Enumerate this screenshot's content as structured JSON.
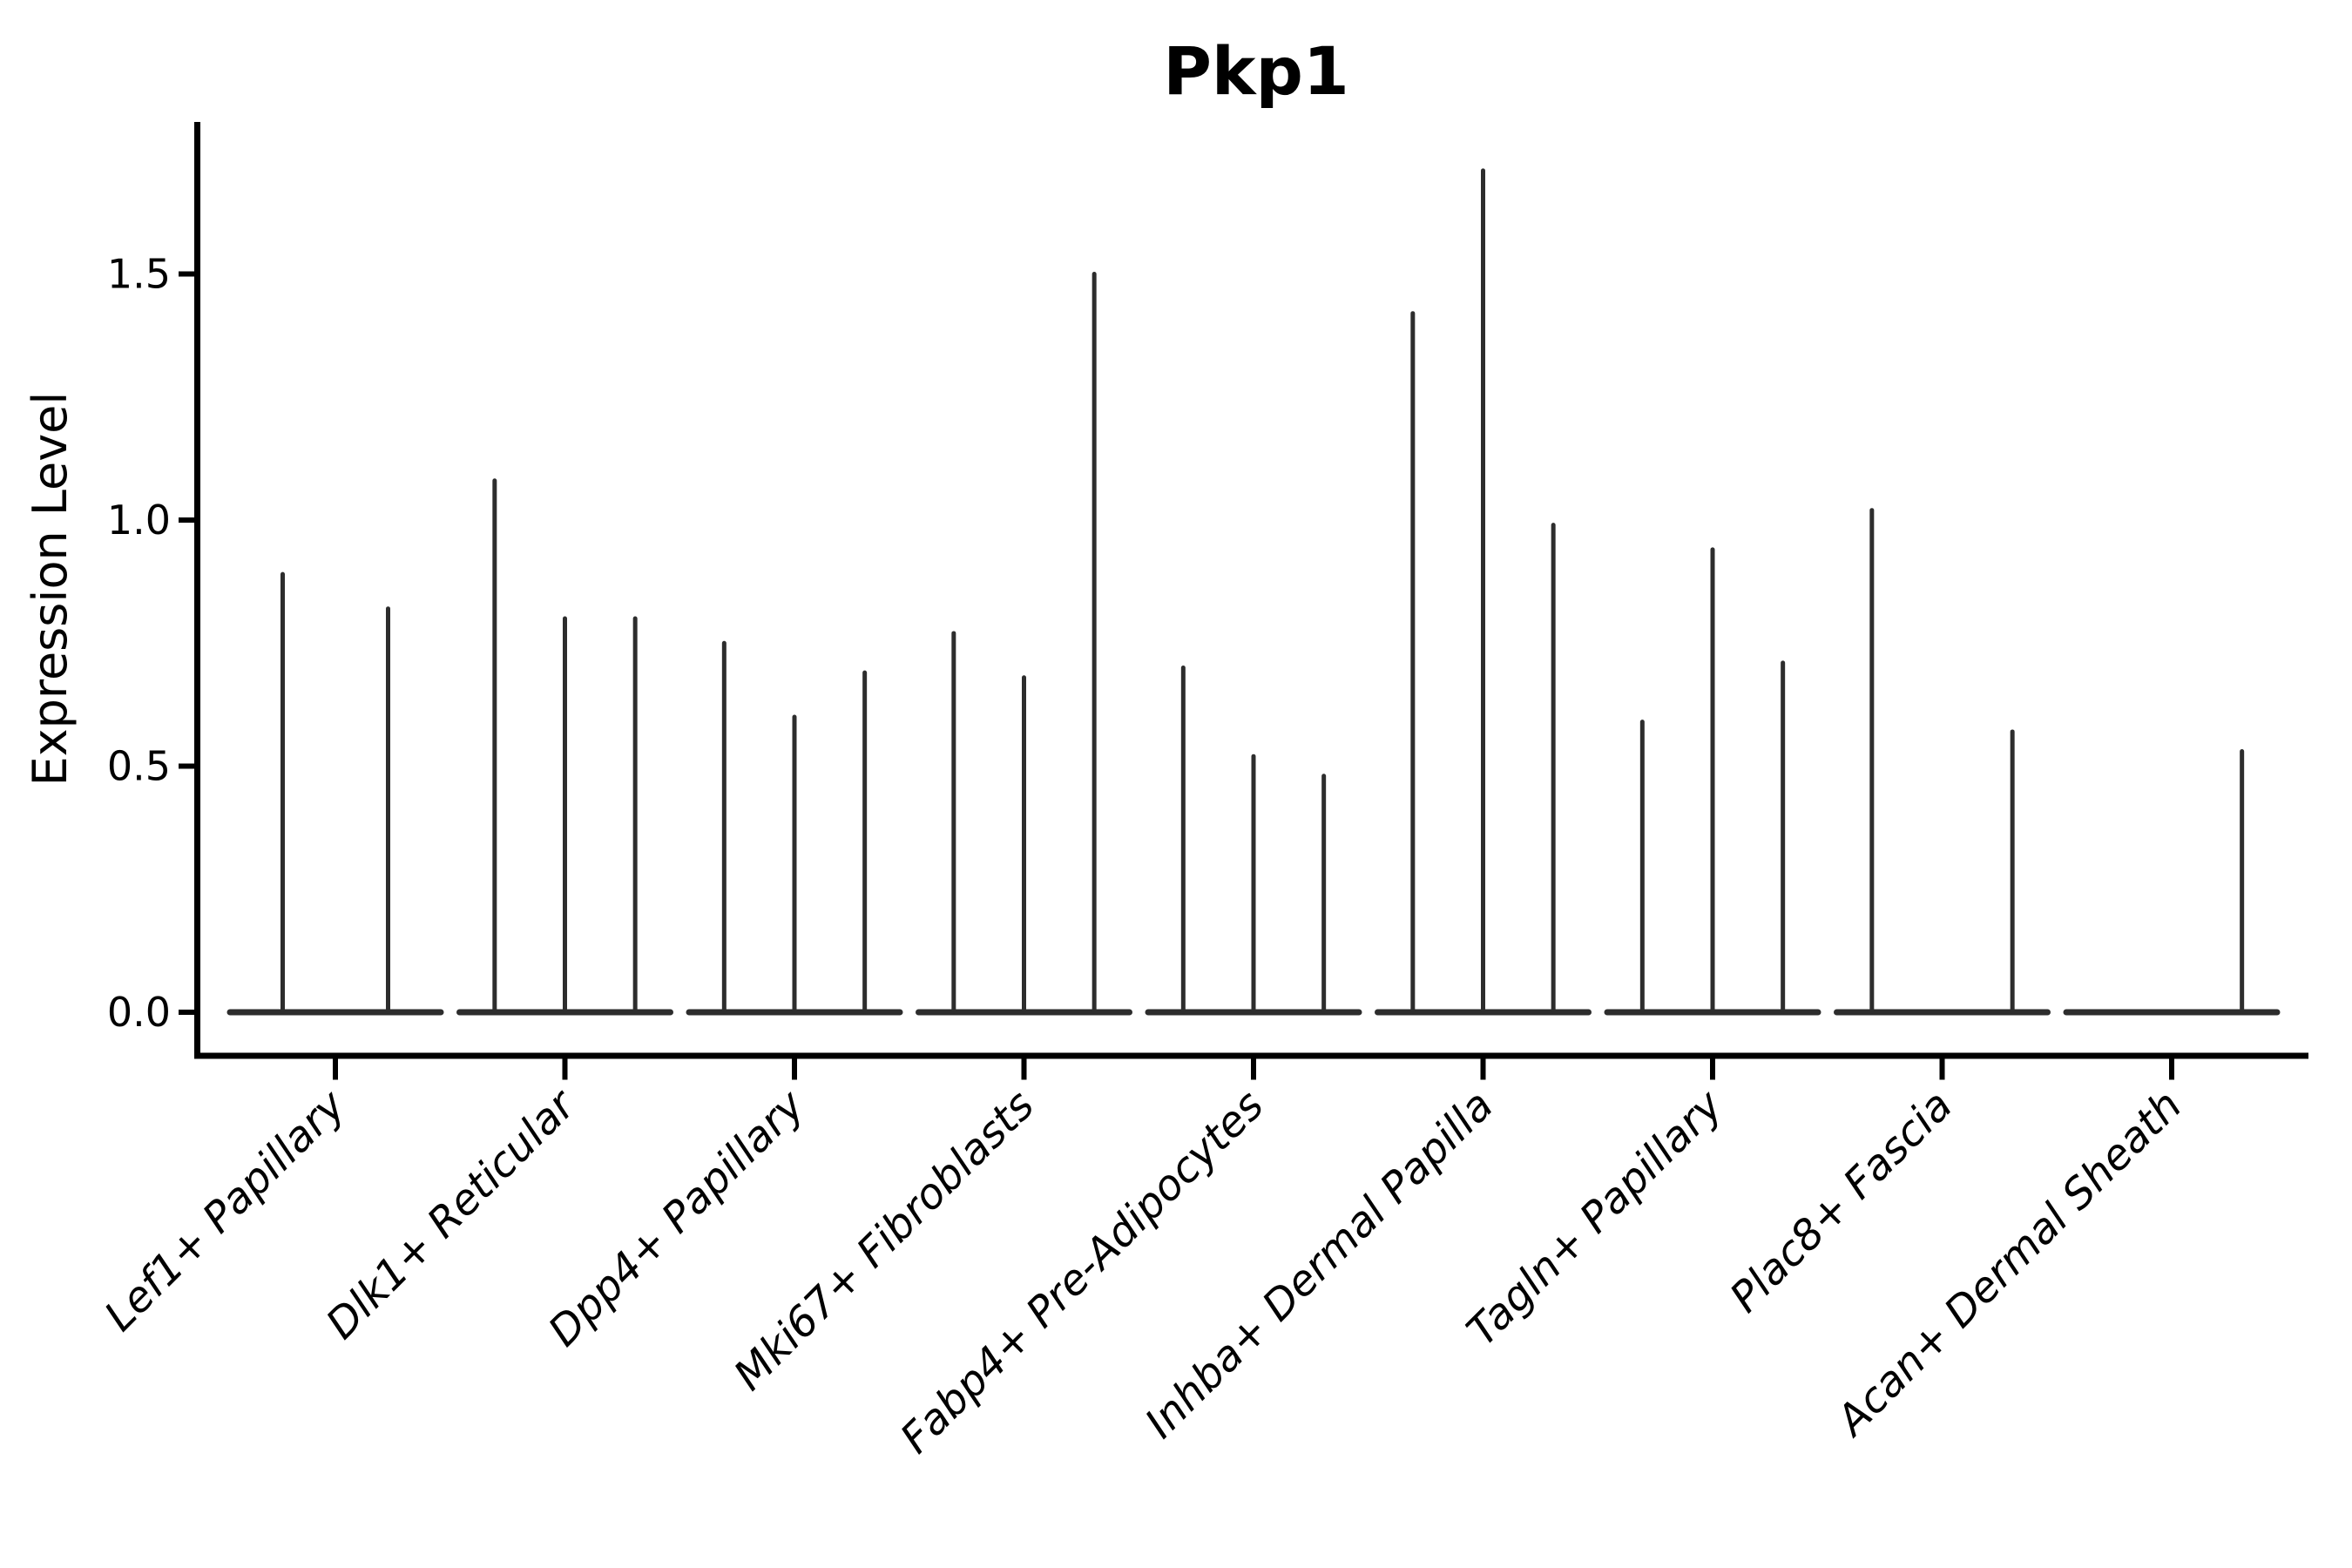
{
  "title": "Pkp1",
  "chart_data": {
    "type": "violin",
    "title": "Pkp1",
    "xlabel": "",
    "ylabel": "Expression Level",
    "ytick_labels": [
      "0.0",
      "0.5",
      "1.0",
      "1.5"
    ],
    "ytick_values": [
      0.0,
      0.5,
      1.0,
      1.5
    ],
    "ylim": [
      -0.09,
      1.81
    ],
    "grid": false,
    "legend_position": "none",
    "categories": [
      "Lef1+ Papillary",
      "Dlk1+ Reticular",
      "Dpp4+ Papillary",
      "Mki67+ Fibroblasts",
      "Fabp4+ Pre-Adipocytes",
      "Inhba+ Dermal Papilla",
      "Tagln+ Papillary",
      "Plac8+ Fascia",
      "Acan+ Dermal Sheath"
    ],
    "violin_max_expression": [
      [
        0.89,
        0.82
      ],
      [
        1.08,
        0.8,
        0.8
      ],
      [
        0.75,
        0.6,
        0.69
      ],
      [
        0.77,
        0.68,
        1.5
      ],
      [
        0.7,
        0.52,
        0.48
      ],
      [
        1.42,
        1.71,
        0.99
      ],
      [
        0.59,
        0.94,
        0.71
      ],
      [
        1.02,
        0.0,
        0.57
      ],
      [
        0.0,
        0.0,
        0.53
      ]
    ]
  },
  "style": {
    "violin_color": "#2d2d2d",
    "axis_color": "#000000",
    "text_color": "#000000",
    "background": "#ffffff"
  }
}
